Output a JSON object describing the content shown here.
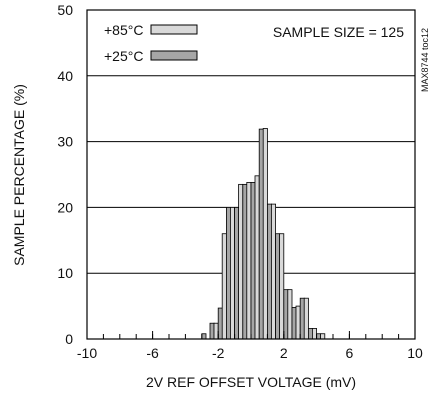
{
  "chart_data": {
    "type": "bar",
    "title": "",
    "xlabel": "2V REF OFFSET VOLTAGE (mV)",
    "ylabel": "SAMPLE PERCENTAGE (%)",
    "xlim": [
      -10,
      10
    ],
    "ylim": [
      0,
      50
    ],
    "x_ticks": [
      -10,
      -6,
      -2,
      2,
      6,
      10
    ],
    "y_ticks": [
      0,
      10,
      20,
      30,
      40,
      50
    ],
    "x_minor_step": 1,
    "grid": true,
    "legend_position": "top-left",
    "annotation": "SAMPLE SIZE = 125",
    "side_label": "MAX8744 toc12",
    "x": [
      -3.0,
      -2.5,
      -2.0,
      -1.5,
      -1.0,
      -0.5,
      0.0,
      0.5,
      1.0,
      1.5,
      2.0,
      2.5,
      3.0,
      3.5,
      4.0,
      4.5
    ],
    "series": [
      {
        "name": "+85°C",
        "color": "#d9d9d9",
        "values": [
          0,
          0,
          2.4,
          16.0,
          20.0,
          23.5,
          23.8,
          24.8,
          32.0,
          20.5,
          16.0,
          7.5,
          5.0,
          6.2,
          1.6,
          0.8
        ]
      },
      {
        "name": "+25°C",
        "color": "#a6a6a6",
        "values": [
          0.8,
          2.4,
          4.7,
          20.0,
          20.0,
          23.5,
          23.8,
          31.9,
          20.5,
          16.0,
          7.5,
          4.8,
          6.2,
          1.6,
          0.8,
          0
        ]
      }
    ]
  }
}
